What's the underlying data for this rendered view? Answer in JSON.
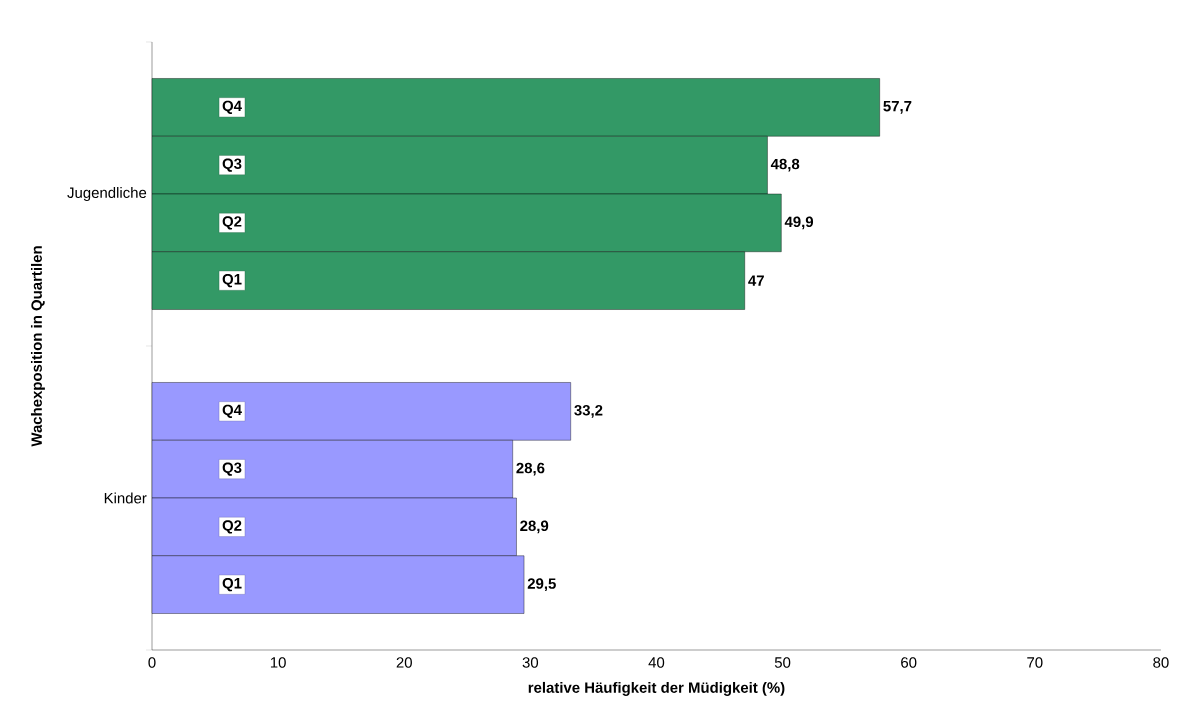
{
  "chart_data": {
    "type": "bar",
    "orientation": "horizontal",
    "xlabel": "relative Häufigkeit der Müdigkeit (%)",
    "ylabel": "Wachexposition in Quartilen",
    "categories": [
      "Jugendliche",
      "Kinder"
    ],
    "series": [
      {
        "name": "Q4",
        "colors": [
          "#339966",
          "#9999ff"
        ],
        "values": [
          57.7,
          33.2
        ],
        "value_labels": [
          "57,7",
          "33,2"
        ]
      },
      {
        "name": "Q3",
        "colors": [
          "#339966",
          "#9999ff"
        ],
        "values": [
          48.8,
          28.6
        ],
        "value_labels": [
          "48,8",
          "28,6"
        ]
      },
      {
        "name": "Q2",
        "colors": [
          "#339966",
          "#9999ff"
        ],
        "values": [
          49.9,
          28.9
        ],
        "value_labels": [
          "49,9",
          "28,9"
        ]
      },
      {
        "name": "Q1",
        "colors": [
          "#339966",
          "#9999ff"
        ],
        "values": [
          47,
          29.5
        ],
        "value_labels": [
          "47",
          "29,5"
        ]
      }
    ],
    "xlim": [
      0,
      80
    ],
    "xticks": [
      0,
      10,
      20,
      30,
      40,
      50,
      60,
      70,
      80
    ],
    "grid": false
  }
}
